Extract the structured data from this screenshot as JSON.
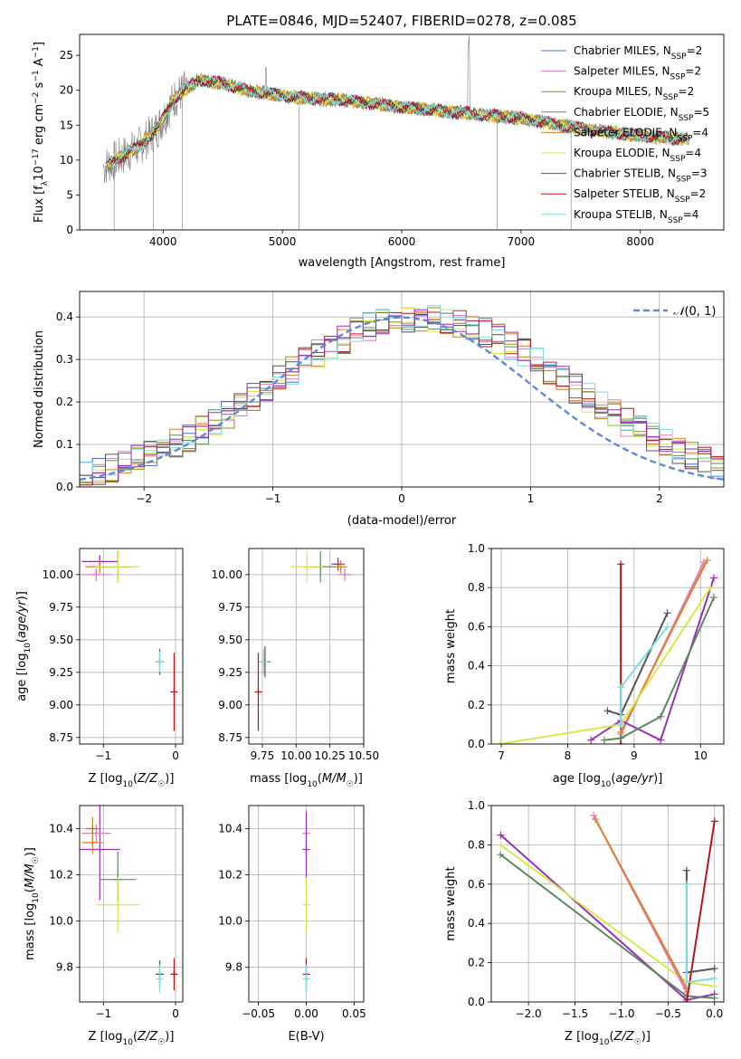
{
  "figure": {
    "title": "PLATE=0846, MJD=52407, FIBERID=0278, z=0.085"
  },
  "colors": {
    "CM": "#4a6fd6",
    "SM": "#e07cc0",
    "KM": "#a08a1e",
    "CE": "#5b8a5f",
    "SE": "#e07f2a",
    "KE": "#d6e84a",
    "CS": "#555555",
    "SS": "#b01818",
    "KS": "#7edce0",
    "P": "#9b2fb8",
    "normal": "#5b8bd6",
    "grid": "#b0b0b0",
    "data": "#808080"
  },
  "chart_data": [
    {
      "id": "spectrum",
      "type": "line",
      "title": "PLATE=0846, MJD=52407, FIBERID=0278, z=0.085",
      "xlabel": "wavelength [Angstrom, rest frame]",
      "ylabel": "Flux [f_λ 10^-17 erg cm^-2 s^-1 A^-1]",
      "xlim": [
        3300,
        8700
      ],
      "ylim": [
        0,
        28
      ],
      "xticks": [
        4000,
        5000,
        6000,
        7000,
        8000
      ],
      "yticks": [
        0,
        5,
        10,
        15,
        20,
        25
      ],
      "grid": false,
      "legend_position": "top-right",
      "continuum_anchors": {
        "x": [
          3500,
          3650,
          3800,
          3950,
          4100,
          4300,
          4500,
          4700,
          4900,
          5100,
          5500,
          6000,
          6500,
          7000,
          7500,
          8000,
          8400
        ],
        "y": [
          9.0,
          10.5,
          12.0,
          14.5,
          19.0,
          21.5,
          21.0,
          20.0,
          19.5,
          19.0,
          18.6,
          17.6,
          16.8,
          16.0,
          14.5,
          13.5,
          13.0
        ]
      },
      "series": [
        {
          "name": "Chabrier MILES, N_SSP=2",
          "color_key": "CM"
        },
        {
          "name": "Salpeter MILES, N_SSP=2",
          "color_key": "SM"
        },
        {
          "name": "Kroupa MILES, N_SSP=2",
          "color_key": "KM"
        },
        {
          "name": "Chabrier ELODIE, N_SSP=5",
          "color_key": "CE"
        },
        {
          "name": "Salpeter ELODIE, N_SSP=4",
          "color_key": "SE"
        },
        {
          "name": "Kroupa ELODIE, N_SSP=4",
          "color_key": "KE"
        },
        {
          "name": "Chabrier STELIB, N_SSP=3",
          "color_key": "CS"
        },
        {
          "name": "Salpeter STELIB, N_SSP=2",
          "color_key": "SS"
        },
        {
          "name": "Kroupa STELIB, N_SSP=4",
          "color_key": "KS"
        }
      ],
      "legend": [
        {
          "main": "Chabrier MILES, N",
          "sub": "SSP",
          "tail": "=2",
          "color_key": "CM"
        },
        {
          "main": "Salpeter MILES, N",
          "sub": "SSP",
          "tail": "=2",
          "color_key": "SM"
        },
        {
          "main": "Kroupa MILES, N",
          "sub": "SSP",
          "tail": "=2",
          "color_key": "KM"
        },
        {
          "main": "Chabrier ELODIE, N",
          "sub": "SSP",
          "tail": "=5",
          "color_key": "CE"
        },
        {
          "main": "Salpeter ELODIE, N",
          "sub": "SSP",
          "tail": "=4",
          "color_key": "SE"
        },
        {
          "main": "Kroupa ELODIE, N",
          "sub": "SSP",
          "tail": "=4",
          "color_key": "KE"
        },
        {
          "main": "Chabrier STELIB, N",
          "sub": "SSP",
          "tail": "=3",
          "color_key": "CS"
        },
        {
          "main": "Salpeter STELIB, N",
          "sub": "SSP",
          "tail": "=2",
          "color_key": "SS"
        },
        {
          "main": "Kroupa STELIB, N",
          "sub": "SSP",
          "tail": "=4",
          "color_key": "KS"
        }
      ]
    },
    {
      "id": "residuals",
      "type": "step",
      "xlabel": "(data-model)/error",
      "ylabel": "Normed distribution",
      "xlim": [
        -2.5,
        2.5
      ],
      "ylim": [
        0,
        0.46
      ],
      "xticks": [
        -2,
        -1,
        0,
        1,
        2
      ],
      "yticks": [
        0.0,
        0.1,
        0.2,
        0.3,
        0.4
      ],
      "grid": true,
      "legend_position": "top-right",
      "normal_label": "N(0,1)",
      "bin_width": 0.1,
      "series_color_keys": [
        "CM",
        "SM",
        "KM",
        "CE",
        "SE",
        "KE",
        "CS",
        "SS",
        "KS",
        "P"
      ]
    },
    {
      "id": "age_vs_Z",
      "type": "errorbar",
      "xlabel": "Z [log10(Z/Z☉)]",
      "ylabel": "age [log10(age/yr)]",
      "xlim": [
        -1.33,
        0.1
      ],
      "ylim": [
        8.7,
        10.2
      ],
      "xticks": [
        -1,
        0
      ],
      "yticks": [
        8.75,
        9.0,
        9.25,
        9.5,
        9.75,
        10.0
      ],
      "points": [
        {
          "color_key": "P",
          "x": -1.05,
          "y": 10.1,
          "xerr": 0.25,
          "yerr": 0.05
        },
        {
          "color_key": "SM",
          "x": -1.1,
          "y": 10.0,
          "xerr": 0.2,
          "yerr": 0.05
        },
        {
          "color_key": "SE",
          "x": -1.05,
          "y": 10.06,
          "xerr": 0.2,
          "yerr": 0.05
        },
        {
          "color_key": "CE",
          "x": -0.8,
          "y": 10.06,
          "xerr": 0.25,
          "yerr": 0.12
        },
        {
          "color_key": "KE",
          "x": -0.8,
          "y": 10.06,
          "xerr": 0.3,
          "yerr": 0.12
        },
        {
          "color_key": "CS",
          "x": -0.22,
          "y": 9.33,
          "xerr": 0.06,
          "yerr": 0.1
        },
        {
          "color_key": "KS",
          "x": -0.22,
          "y": 9.33,
          "xerr": 0.06,
          "yerr": 0.08
        },
        {
          "color_key": "SS",
          "x": -0.02,
          "y": 9.1,
          "xerr": 0.0,
          "yerr": 0.3
        }
      ]
    },
    {
      "id": "age_vs_mass",
      "type": "errorbar",
      "xlabel": "mass [log10(M/M☉)]",
      "ylabel": "",
      "xlim": [
        9.65,
        10.5
      ],
      "ylim": [
        8.7,
        10.2
      ],
      "xticks": [
        9.75,
        10.0,
        10.25,
        10.5
      ],
      "yticks": [
        8.75,
        9.0,
        9.25,
        9.5,
        9.75,
        10.0
      ],
      "points": [
        {
          "color_key": "CE",
          "x": 10.18,
          "y": 10.06,
          "xerr": 0.12,
          "yerr": 0.12
        },
        {
          "color_key": "KE",
          "x": 10.08,
          "y": 10.06,
          "xerr": 0.12,
          "yerr": 0.12
        },
        {
          "color_key": "P",
          "x": 10.31,
          "y": 10.08,
          "xerr": 0.05,
          "yerr": 0.05
        },
        {
          "color_key": "SM",
          "x": 10.36,
          "y": 10.0,
          "xerr": 0.05,
          "yerr": 0.05
        },
        {
          "color_key": "SE",
          "x": 10.33,
          "y": 10.06,
          "xerr": 0.05,
          "yerr": 0.05
        },
        {
          "color_key": "CS",
          "x": 9.77,
          "y": 9.33,
          "xerr": 0.04,
          "yerr": 0.12
        },
        {
          "color_key": "KS",
          "x": 9.76,
          "y": 9.33,
          "xerr": 0.04,
          "yerr": 0.1
        },
        {
          "color_key": "SS",
          "x": 9.72,
          "y": 9.1,
          "xerr": 0.0,
          "yerr": 0.3
        }
      ]
    },
    {
      "id": "weight_vs_age",
      "type": "line",
      "xlabel": "age [log10(age/yr)]",
      "ylabel": "mass weight",
      "xlim": [
        6.85,
        10.35
      ],
      "ylim": [
        0,
        1.0
      ],
      "xticks": [
        7,
        8,
        9,
        10
      ],
      "yticks": [
        0.0,
        0.2,
        0.4,
        0.6,
        0.8,
        1.0
      ],
      "series": [
        {
          "color_key": "SS",
          "x": [
            8.8,
            8.8
          ],
          "y": [
            0.0,
            0.92
          ]
        },
        {
          "color_key": "SM",
          "x": [
            8.8,
            10.05
          ],
          "y": [
            0.05,
            0.93
          ]
        },
        {
          "color_key": "SE",
          "x": [
            8.8,
            10.1
          ],
          "y": [
            0.06,
            0.94
          ]
        },
        {
          "color_key": "P",
          "x": [
            8.35,
            8.8,
            9.4,
            10.2
          ],
          "y": [
            0.02,
            0.12,
            0.02,
            0.85
          ]
        },
        {
          "color_key": "CE",
          "x": [
            8.55,
            8.8,
            9.4,
            10.2
          ],
          "y": [
            0.02,
            0.03,
            0.14,
            0.75
          ]
        },
        {
          "color_key": "KE",
          "x": [
            6.98,
            8.8,
            10.15
          ],
          "y": [
            0.0,
            0.1,
            0.8
          ]
        },
        {
          "color_key": "CS",
          "x": [
            8.6,
            8.8,
            9.5
          ],
          "y": [
            0.17,
            0.15,
            0.67
          ]
        },
        {
          "color_key": "KS",
          "x": [
            8.8,
            8.8,
            9.5
          ],
          "y": [
            0.1,
            0.29,
            0.6
          ]
        }
      ]
    },
    {
      "id": "mass_vs_Z",
      "type": "errorbar",
      "xlabel": "Z [log10(Z/Z☉)]",
      "ylabel": "mass [log10(M/M☉)]",
      "xlim": [
        -1.33,
        0.1
      ],
      "ylim": [
        9.65,
        10.5
      ],
      "xticks": [
        -1,
        0
      ],
      "yticks": [
        9.8,
        10.0,
        10.2,
        10.4
      ],
      "points": [
        {
          "color_key": "P",
          "x": -1.05,
          "y": 10.31,
          "xerr": 0.28,
          "yerr": 0.22
        },
        {
          "color_key": "SM",
          "x": -1.1,
          "y": 10.38,
          "xerr": 0.2,
          "yerr": 0.04
        },
        {
          "color_key": "SE",
          "x": -1.15,
          "y": 10.34,
          "xerr": 0.15,
          "yerr": 0.05
        },
        {
          "color_key": "KM",
          "x": -1.15,
          "y": 10.4,
          "xerr": 0.1,
          "yerr": 0.05
        },
        {
          "color_key": "CE",
          "x": -0.8,
          "y": 10.18,
          "xerr": 0.25,
          "yerr": 0.12
        },
        {
          "color_key": "KE",
          "x": -0.8,
          "y": 10.07,
          "xerr": 0.3,
          "yerr": 0.12
        },
        {
          "color_key": "CS",
          "x": -0.22,
          "y": 9.77,
          "xerr": 0.06,
          "yerr": 0.06
        },
        {
          "color_key": "KS",
          "x": -0.22,
          "y": 9.75,
          "xerr": 0.05,
          "yerr": 0.06
        },
        {
          "color_key": "SS",
          "x": -0.02,
          "y": 9.77,
          "xerr": 0.03,
          "yerr": 0.07
        }
      ]
    },
    {
      "id": "mass_vs_ebv",
      "type": "errorbar",
      "xlabel": "E(B-V)",
      "ylabel": "",
      "xlim": [
        -0.06,
        0.06
      ],
      "ylim": [
        9.65,
        10.5
      ],
      "xticks": [
        -0.05,
        0.0,
        0.05
      ],
      "yticks": [
        9.8,
        10.0,
        10.2,
        10.4
      ],
      "points": [
        {
          "color_key": "SM",
          "x": 0.0,
          "y": 10.38,
          "xerr": 0.0,
          "yerr": 0.1
        },
        {
          "color_key": "P",
          "x": 0.0,
          "y": 10.31,
          "xerr": 0.0,
          "yerr": 0.16
        },
        {
          "color_key": "KE",
          "x": 0.0,
          "y": 10.07,
          "xerr": 0.0,
          "yerr": 0.12
        },
        {
          "color_key": "SS",
          "x": 0.0,
          "y": 9.77,
          "xerr": 0.0,
          "yerr": 0.07
        },
        {
          "color_key": "KS",
          "x": 0.0,
          "y": 9.75,
          "xerr": 0.0,
          "yerr": 0.06
        }
      ]
    },
    {
      "id": "weight_vs_Z",
      "type": "line",
      "xlabel": "Z [log10(Z/Z☉)]",
      "ylabel": "mass weight",
      "xlim": [
        -2.4,
        0.1
      ],
      "ylim": [
        0,
        1.0
      ],
      "xticks": [
        -2.0,
        -1.5,
        -1.0,
        -0.5,
        0.0
      ],
      "yticks": [
        0.0,
        0.2,
        0.4,
        0.6,
        0.8,
        1.0
      ],
      "series": [
        {
          "color_key": "P",
          "x": [
            -2.3,
            -0.3,
            0.0
          ],
          "y": [
            0.85,
            0.01,
            0.04
          ]
        },
        {
          "color_key": "CE",
          "x": [
            -2.3,
            -0.3,
            0.0
          ],
          "y": [
            0.75,
            0.03,
            0.02
          ]
        },
        {
          "color_key": "KE",
          "x": [
            -2.3,
            -0.3,
            0.0
          ],
          "y": [
            0.8,
            0.1,
            0.08
          ]
        },
        {
          "color_key": "SM",
          "x": [
            -1.3,
            -0.3
          ],
          "y": [
            0.95,
            0.05
          ]
        },
        {
          "color_key": "SE",
          "x": [
            -1.28,
            -0.3
          ],
          "y": [
            0.93,
            0.07
          ]
        },
        {
          "color_key": "SS",
          "x": [
            -0.3,
            0.0
          ],
          "y": [
            0.0,
            0.92
          ]
        },
        {
          "color_key": "CS",
          "x": [
            -0.3,
            -0.3,
            0.0
          ],
          "y": [
            0.67,
            0.15,
            0.17
          ]
        },
        {
          "color_key": "KS",
          "x": [
            -0.3,
            -0.3,
            0.0
          ],
          "y": [
            0.6,
            0.1,
            0.12
          ]
        }
      ]
    }
  ]
}
